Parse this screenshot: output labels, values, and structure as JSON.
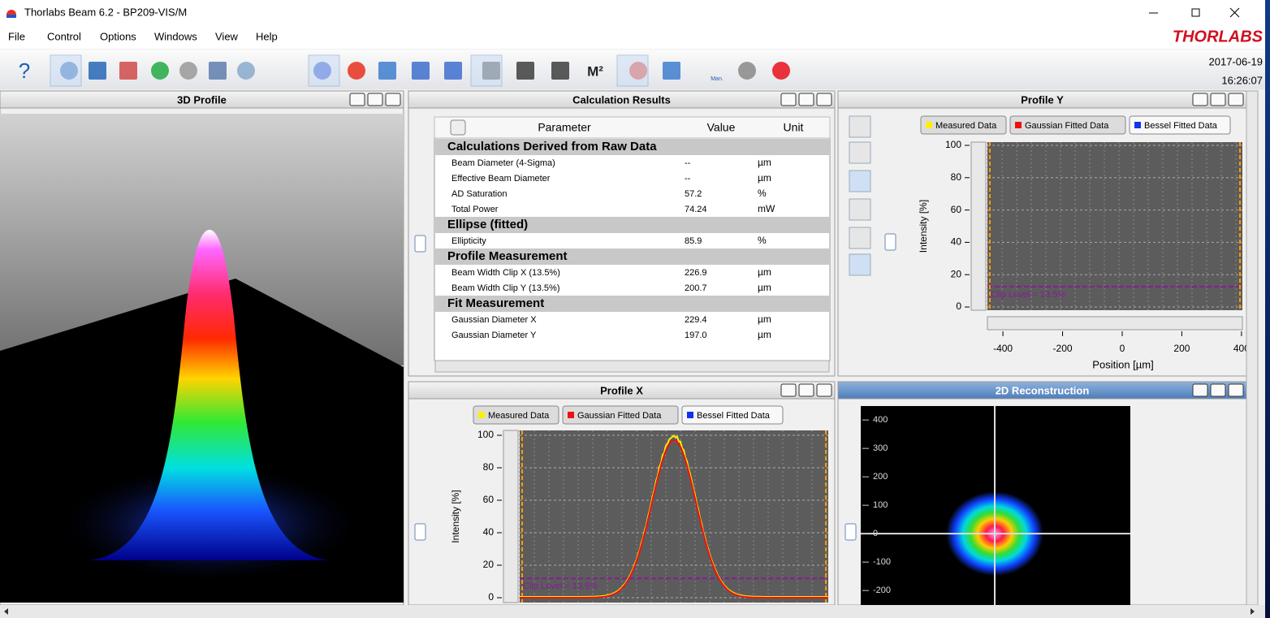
{
  "window": {
    "title": "Thorlabs Beam 6.2 - BP209-VIS/M",
    "brand": "THORLABS",
    "date": "2017-06-19",
    "time": "16:26:07"
  },
  "menu": [
    "File",
    "Control",
    "Options",
    "Windows",
    "View",
    "Help"
  ],
  "toolbar": {
    "help": "?",
    "m2": "M²",
    "manual": "Man."
  },
  "profile_3d": {
    "title": "3D Profile"
  },
  "calculation_results": {
    "title": "Calculation Results",
    "columns": [
      "Parameter",
      "Value",
      "Unit"
    ],
    "rows": [
      {
        "section": "Calculations Derived from Raw Data"
      },
      {
        "parameter": "Beam Diameter (4-Sigma)",
        "value": "--",
        "unit": "µm"
      },
      {
        "parameter": "Effective Beam Diameter",
        "value": "--",
        "unit": "µm"
      },
      {
        "parameter": "AD Saturation",
        "value": 57.2,
        "unit": "%"
      },
      {
        "parameter": "Total Power",
        "value": 74.24,
        "unit": "mW"
      },
      {
        "section": "Ellipse (fitted)"
      },
      {
        "parameter": "Ellipticity",
        "value": 85.9,
        "unit": "%"
      },
      {
        "section": "Profile Measurement"
      },
      {
        "parameter": "Beam Width Clip X (13.5%)",
        "value": 226.9,
        "unit": "µm"
      },
      {
        "parameter": "Beam Width Clip Y (13.5%)",
        "value": 200.7,
        "unit": "µm"
      },
      {
        "section": "Fit Measurement"
      },
      {
        "parameter": "Gaussian Diameter X",
        "value": 229.4,
        "unit": "µm"
      },
      {
        "parameter": "Gaussian Diameter Y",
        "value": "197.0",
        "unit": "µm"
      }
    ]
  },
  "profile_y": {
    "title": "Profile Y",
    "legend": [
      "Measured Data",
      "Gaussian Fitted Data",
      "Bessel Fitted Data"
    ],
    "ylabel": "Intensity [%]",
    "xlabel": "Position [µm]",
    "clip_label": "Clip Level = 13.5%",
    "xlim": [
      -452,
      403
    ],
    "ylim": [
      -2,
      102
    ],
    "xticks": [
      -400,
      -200,
      0,
      200,
      400
    ],
    "yticks": [
      0,
      20,
      40,
      60,
      80,
      100
    ]
  },
  "profile_x": {
    "title": "Profile X",
    "legend": [
      "Measured Data",
      "Gaussian Fitted Data",
      "Bessel Fitted Data"
    ],
    "ylabel": "Intensity [%]",
    "clip_label": "Clip Level = 13.5%",
    "ylim": [
      -3,
      103
    ],
    "yticks": [
      0,
      20,
      40,
      60,
      80,
      100
    ]
  },
  "reconstruction_2d": {
    "title": "2D Reconstruction",
    "ylim": [
      -251,
      449
    ],
    "yticks": [
      400,
      300,
      200,
      100,
      0,
      -100,
      -200
    ]
  }
}
